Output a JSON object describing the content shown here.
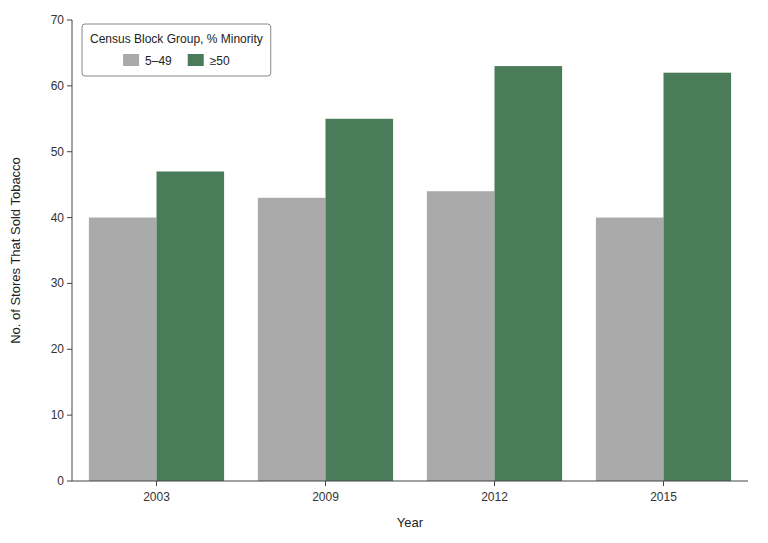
{
  "chart_data": {
    "type": "bar",
    "categories": [
      "2003",
      "2009",
      "2012",
      "2015"
    ],
    "series": [
      {
        "name": "5–49",
        "color": "#aaaaaa",
        "values": [
          40,
          43,
          44,
          40
        ]
      },
      {
        "name": "≥50",
        "color": "#4a7c59",
        "values": [
          47,
          55,
          63,
          62
        ]
      }
    ],
    "xlabel": "Year",
    "ylabel": "No. of Stores That Sold Tobacco",
    "legend_title": "Census Block Group, % Minority",
    "legend": "upper left",
    "ylim": [
      0,
      70
    ],
    "yticks": [
      0,
      10,
      20,
      30,
      40,
      50,
      60,
      70
    ]
  }
}
